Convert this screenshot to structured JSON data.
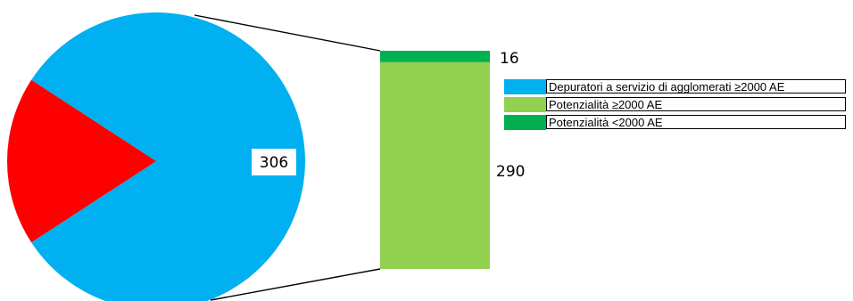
{
  "chart_data": {
    "type": "bar-of-pie",
    "pie": {
      "slices": [
        {
          "label": "Depuratori a servizio di agglomerati ≥2000 AE",
          "value": 306,
          "data_label": "306",
          "color": "#00b0f0"
        },
        {
          "value": 69,
          "color": "#ff0000"
        }
      ]
    },
    "bar": {
      "segments": [
        {
          "label": "Potenzialità ≥2000 AE",
          "value": 290,
          "data_label": "290",
          "color": "#92d050"
        },
        {
          "label": "Potenzialità <2000 AE",
          "value": 16,
          "data_label": "16",
          "color": "#00b050"
        }
      ]
    },
    "legend": {
      "position": "right",
      "items": [
        {
          "label": "Depuratori a servizio di agglomerati ≥2000 AE",
          "color": "#00b0f0"
        },
        {
          "label": "Potenzialità ≥2000 AE",
          "color": "#92d050"
        },
        {
          "label": "Potenzialità <2000 AE",
          "color": "#00b050"
        }
      ]
    }
  }
}
